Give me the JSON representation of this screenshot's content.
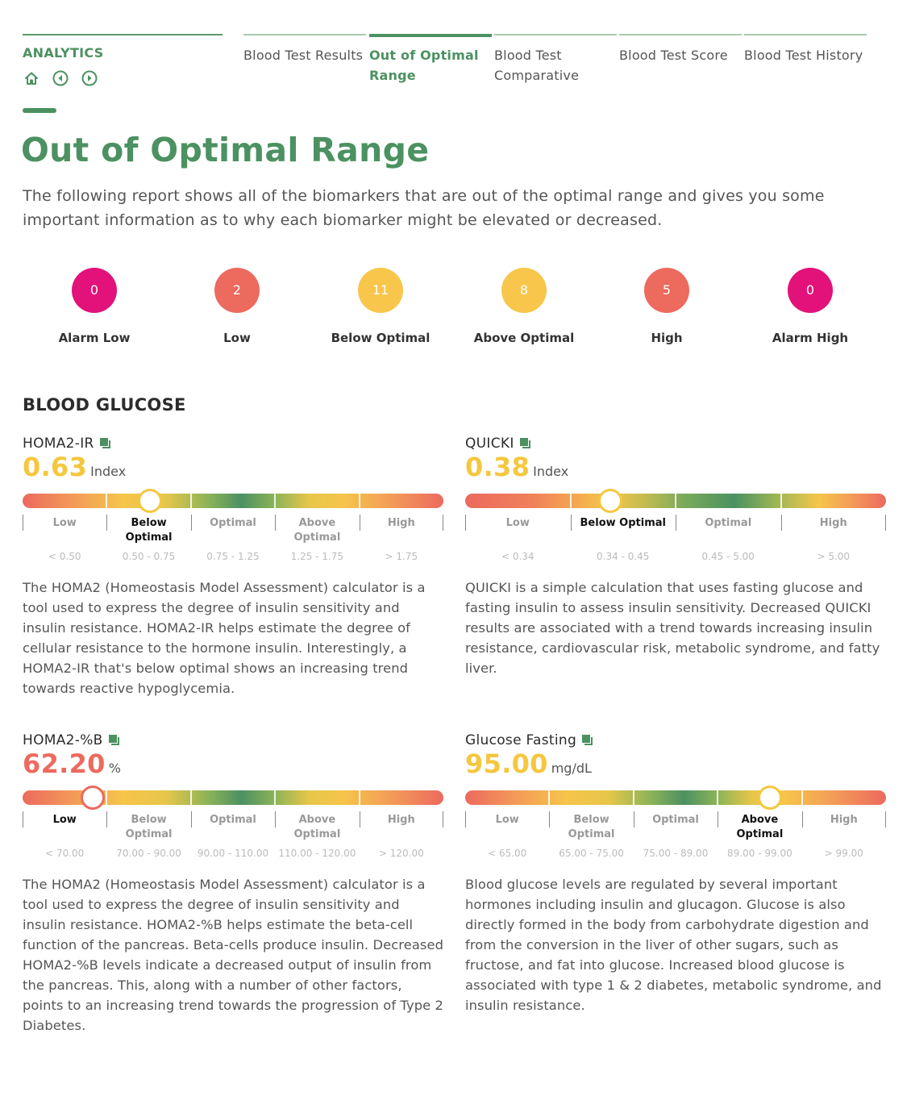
{
  "nav": {
    "brand": "ANALYTICS",
    "icons": [
      "home-icon",
      "previous-icon",
      "next-icon"
    ],
    "tabs": [
      {
        "label": "Blood Test Results",
        "active": false
      },
      {
        "label": "Out of Optimal Range",
        "active": true
      },
      {
        "label": "Blood Test Comparative",
        "active": false
      },
      {
        "label": "Blood Test Score",
        "active": false
      },
      {
        "label": "Blood Test History",
        "active": false
      }
    ]
  },
  "page": {
    "title": "Out of Optimal Range",
    "intro": "The following report shows all of the biomarkers that are out of the optimal range and gives you some important information as to why each biomarker might be elevated or decreased."
  },
  "summary": [
    {
      "count": "0",
      "label": "Alarm Low",
      "color": "#e2127a"
    },
    {
      "count": "2",
      "label": "Low",
      "color": "#ec6a5e"
    },
    {
      "count": "11",
      "label": "Below Optimal",
      "color": "#f7c64b"
    },
    {
      "count": "8",
      "label": "Above Optimal",
      "color": "#f7c64b"
    },
    {
      "count": "5",
      "label": "High",
      "color": "#ec6a5e"
    },
    {
      "count": "0",
      "label": "Alarm High",
      "color": "#e2127a"
    }
  ],
  "section": {
    "title": "BLOOD GLUCOSE"
  },
  "colors": {
    "green": "#4c9161",
    "yellow": "#f4c73e",
    "red": "#ec6a5e",
    "marker_red": "#ec6a5e"
  },
  "biomarkers": [
    {
      "name": "HOMA2-IR",
      "value": "0.63",
      "unit": "Index",
      "value_color": "#f4c73e",
      "marker_color": "#f4c73e",
      "current_segment": 1,
      "marker_fraction": 0.302,
      "bar_type": "five",
      "segments": [
        {
          "label": "Low",
          "range": "< 0.50"
        },
        {
          "label": "Below Optimal",
          "range": "0.50 - 0.75"
        },
        {
          "label": "Optimal",
          "range": "0.75 - 1.25"
        },
        {
          "label": "Above Optimal",
          "range": "1.25 - 1.75"
        },
        {
          "label": "High",
          "range": "> 1.75"
        }
      ],
      "description": "The HOMA2 (Homeostasis Model Assessment) calculator is a tool used to express the degree of insulin sensitivity and insulin resistance. HOMA2-IR helps estimate the degree of cellular resistance to the hormone insulin. Interestingly, a HOMA2-IR that's below optimal shows an increasing trend towards reactive hypoglycemia."
    },
    {
      "name": "QUICKI",
      "value": "0.38",
      "unit": "Index",
      "value_color": "#f4c73e",
      "marker_color": "#f4c73e",
      "current_segment": 1,
      "marker_fraction": 0.344,
      "bar_type": "four",
      "segments": [
        {
          "label": "Low",
          "range": "< 0.34"
        },
        {
          "label": "Below Optimal",
          "range": "0.34 - 0.45"
        },
        {
          "label": "Optimal",
          "range": "0.45 - 5.00"
        },
        {
          "label": "High",
          "range": "> 5.00"
        }
      ],
      "description": "QUICKI is a simple calculation that uses fasting glucose and fasting insulin to assess insulin sensitivity. Decreased QUICKI results are associated with a trend towards increasing insulin resistance, cardiovascular risk, metabolic syndrome, and fatty liver."
    },
    {
      "name": "HOMA2-%B",
      "value": "62.20",
      "unit": "%",
      "value_color": "#ec6a5e",
      "marker_color": "#ec6a5e",
      "current_segment": 0,
      "marker_fraction": 0.166,
      "bar_type": "five",
      "segments": [
        {
          "label": "Low",
          "range": "< 70.00"
        },
        {
          "label": "Below Optimal",
          "range": "70.00 - 90.00"
        },
        {
          "label": "Optimal",
          "range": "90.00 - 110.00"
        },
        {
          "label": "Above Optimal",
          "range": "110.00 - 120.00"
        },
        {
          "label": "High",
          "range": "> 120.00"
        }
      ],
      "description": "The HOMA2 (Homeostasis Model Assessment) calculator is a tool used to express the degree of insulin sensitivity and insulin resistance. HOMA2-%B helps estimate the beta-cell function of the pancreas. Beta-cells produce insulin. Decreased HOMA2-%B levels indicate a decreased output of insulin from the pancreas. This, along with a number of other factors, points to an increasing trend towards the progression of Type 2 Diabetes."
    },
    {
      "name": "Glucose Fasting",
      "value": "95.00",
      "unit": "mg/dL",
      "value_color": "#f4c73e",
      "marker_color": "#f4c73e",
      "current_segment": 3,
      "marker_fraction": 0.724,
      "bar_type": "five",
      "segments": [
        {
          "label": "Low",
          "range": "< 65.00"
        },
        {
          "label": "Below Optimal",
          "range": "65.00 - 75.00"
        },
        {
          "label": "Optimal",
          "range": "75.00 - 89.00"
        },
        {
          "label": "Above Optimal",
          "range": "89.00 - 99.00"
        },
        {
          "label": "High",
          "range": "> 99.00"
        }
      ],
      "description": "Blood glucose levels are regulated by several important hormones including insulin and glucagon. Glucose is also directly formed in the body from carbohydrate digestion and from the conversion in the liver of other sugars, such as fructose, and fat into glucose. Increased blood glucose is associated with type 1 & 2 diabetes, metabolic syndrome, and insulin resistance."
    }
  ]
}
